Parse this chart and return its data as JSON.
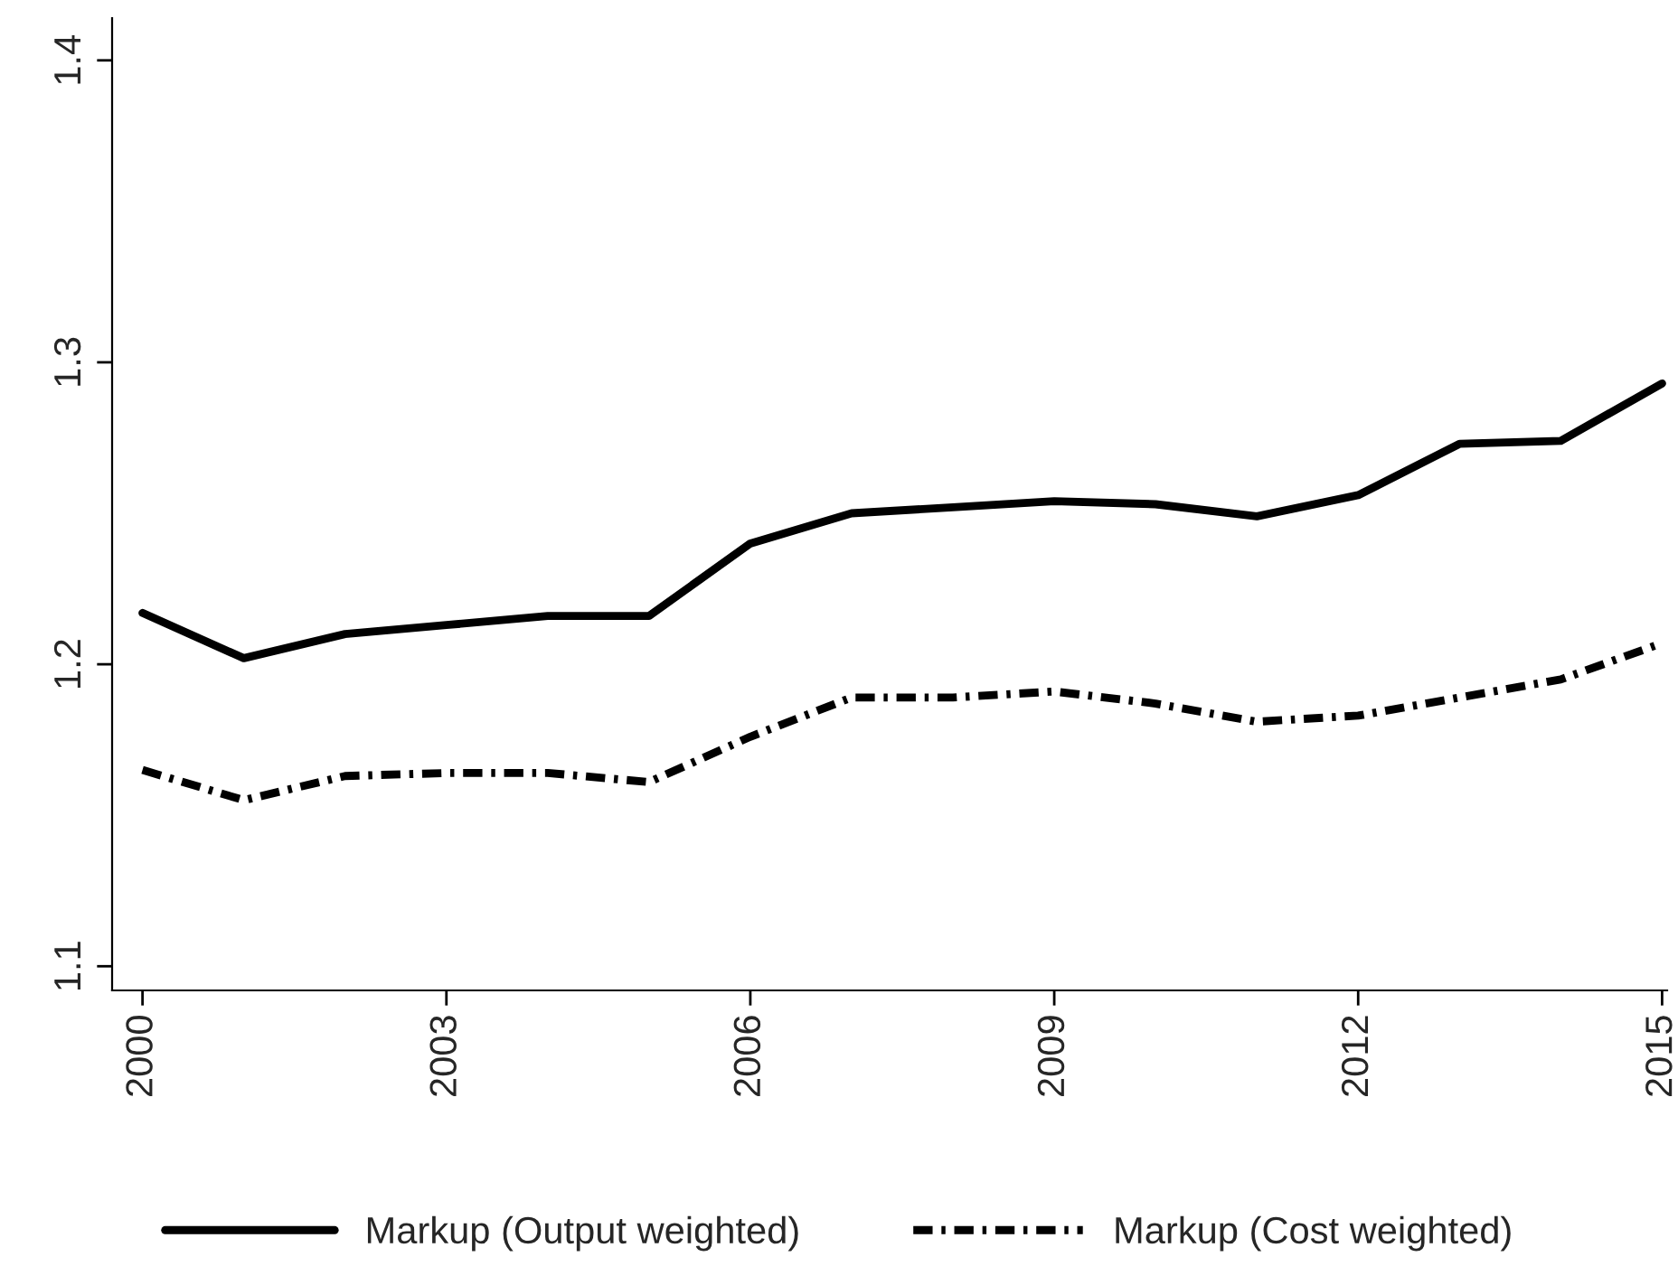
{
  "chart_data": {
    "type": "line",
    "x": [
      2000,
      2001,
      2002,
      2003,
      2004,
      2005,
      2006,
      2007,
      2008,
      2009,
      2010,
      2011,
      2012,
      2013,
      2014,
      2015
    ],
    "series": [
      {
        "name": "Markup (Output weighted)",
        "color": "#000000",
        "line_style": "solid",
        "values": [
          1.217,
          1.202,
          1.21,
          1.213,
          1.216,
          1.216,
          1.24,
          1.25,
          1.252,
          1.254,
          1.253,
          1.249,
          1.256,
          1.273,
          1.274,
          1.293
        ]
      },
      {
        "name": "Markup (Cost weighted)",
        "color": "#000000",
        "line_style": "dashdot",
        "values": [
          1.165,
          1.155,
          1.163,
          1.164,
          1.164,
          1.161,
          1.176,
          1.189,
          1.189,
          1.191,
          1.187,
          1.181,
          1.183,
          1.189,
          1.195,
          1.207
        ]
      }
    ],
    "xlim": [
      1999.7,
      2015.05
    ],
    "xticks": [
      2000,
      2003,
      2006,
      2009,
      2012,
      2015
    ],
    "ylim": [
      1.092,
      1.414
    ],
    "yticks": [
      1.1,
      1.2,
      1.3,
      1.4
    ],
    "grid": false,
    "legend": "bottom",
    "marker": "none"
  }
}
